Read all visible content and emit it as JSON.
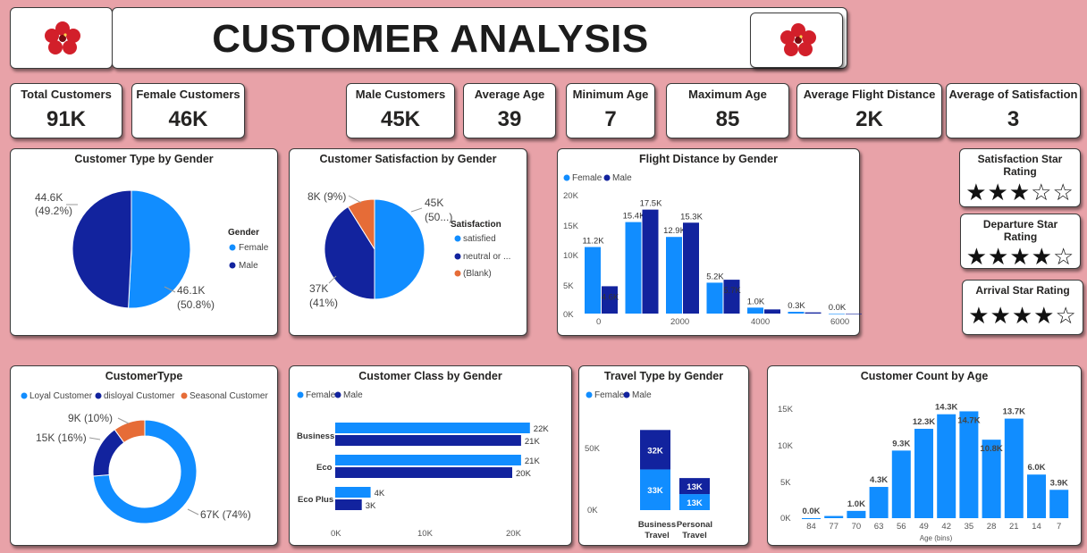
{
  "header": {
    "title": "CUSTOMER ANALYSIS"
  },
  "kpis": [
    {
      "label": "Total Customers",
      "value": "91K"
    },
    {
      "label": "Female Customers",
      "value": "46K"
    },
    {
      "label": "Male Customers",
      "value": "45K"
    },
    {
      "label": "Average Age",
      "value": "39"
    },
    {
      "label": "Minimum Age",
      "value": "7"
    },
    {
      "label": "Maximum Age",
      "value": "85"
    },
    {
      "label": "Average Flight Distance",
      "value": "2K"
    },
    {
      "label": "Average of Satisfaction",
      "value": "3"
    }
  ],
  "colors": {
    "female": "#118dff",
    "male": "#12239e",
    "blank": "#e66c37",
    "background": "#e8a2a8"
  },
  "ratings": [
    {
      "title": "Satisfaction Star Rating",
      "stars": "★★★☆☆",
      "value": 3
    },
    {
      "title": "Departure Star Rating",
      "stars": "★★★★☆",
      "value": 4
    },
    {
      "title": "Arrival Star Rating",
      "stars": "★★★★☆",
      "value": 4
    }
  ],
  "chart_data": [
    {
      "type": "pie",
      "title": "Customer Type by Gender",
      "legend_title": "Gender",
      "categories": [
        "Female",
        "Male"
      ],
      "values": [
        46.1,
        44.6
      ],
      "labels": [
        "46.1K",
        "44.6K"
      ],
      "pct_labels": [
        "(50.8%)",
        "(49.2%)"
      ]
    },
    {
      "type": "pie",
      "title": "Customer Satisfaction by Gender",
      "legend_title": "Satisfaction",
      "categories": [
        "satisfied",
        "neutral or ...",
        "(Blank)"
      ],
      "values": [
        45,
        37,
        8
      ],
      "labels": [
        "45K",
        "37K",
        "8K"
      ],
      "pct_labels": [
        "(50...)",
        "(41%)",
        "(9%)"
      ]
    },
    {
      "type": "bar",
      "title": "Flight Distance by Gender",
      "legend": [
        "Female",
        "Male"
      ],
      "x_ticks": [
        "0",
        "2000",
        "4000",
        "6000"
      ],
      "y_ticks": [
        "0K",
        "5K",
        "10K",
        "15K",
        "20K"
      ],
      "ylim": [
        0,
        20
      ],
      "series": [
        {
          "name": "Female",
          "values": [
            11.2,
            15.4,
            12.9,
            5.2,
            1.0,
            0.3,
            0.0
          ],
          "labels": [
            "11.2K",
            "15.4K",
            "12.9K",
            "5.2K",
            "1.0K",
            "0.3K",
            "0.0K"
          ]
        },
        {
          "name": "Male",
          "values": [
            4.6,
            17.5,
            15.3,
            5.7,
            0.7,
            0.2,
            0.0
          ],
          "labels": [
            "4.6K",
            "17.5K",
            "15.3K",
            "5.7K",
            "",
            "",
            ""
          ]
        }
      ]
    },
    {
      "type": "pie",
      "title": "CustomerType",
      "categories": [
        "Loyal Customer",
        "disloyal Customer",
        "Seasonal Customer"
      ],
      "values": [
        67,
        15,
        9
      ],
      "labels": [
        "67K (74%)",
        "15K (16%)",
        "9K (10%)"
      ]
    },
    {
      "type": "bar",
      "title": "Customer Class by Gender",
      "legend": [
        "Female",
        "Male"
      ],
      "categories": [
        "Business",
        "Eco",
        "Eco Plus"
      ],
      "x_ticks": [
        "0K",
        "10K",
        "20K"
      ],
      "xlim": [
        0,
        25
      ],
      "series": [
        {
          "name": "Female",
          "values": [
            22,
            21,
            4
          ],
          "labels": [
            "22K",
            "21K",
            "4K"
          ]
        },
        {
          "name": "Male",
          "values": [
            21,
            20,
            3
          ],
          "labels": [
            "21K",
            "20K",
            "3K"
          ]
        }
      ]
    },
    {
      "type": "bar",
      "title": "Travel Type by Gender",
      "legend": [
        "Female",
        "Male"
      ],
      "categories": [
        "Business Travel",
        "Personal Travel"
      ],
      "y_ticks": [
        "0K",
        "50K"
      ],
      "series": [
        {
          "name": "Female",
          "values": [
            33,
            13
          ],
          "labels": [
            "33K",
            "13K"
          ]
        },
        {
          "name": "Male",
          "values": [
            32,
            13
          ],
          "labels": [
            "32K",
            "13K"
          ]
        }
      ]
    },
    {
      "type": "bar",
      "title": "Customer Count by Age",
      "xlabel": "Age (bins)",
      "categories": [
        "84",
        "77",
        "70",
        "63",
        "56",
        "49",
        "42",
        "35",
        "28",
        "21",
        "14",
        "7"
      ],
      "values": [
        0.0,
        0.3,
        1.0,
        4.3,
        9.3,
        12.3,
        14.3,
        14.7,
        10.8,
        13.7,
        6.0,
        3.9
      ],
      "labels": [
        "0.0K",
        "",
        "1.0K",
        "4.3K",
        "9.3K",
        "12.3K",
        "14.3K",
        "14.7K",
        "10.8K",
        "13.7K",
        "6.0K",
        "3.9K"
      ],
      "y_ticks": [
        "0K",
        "5K",
        "10K",
        "15K"
      ],
      "ylim": [
        0,
        16
      ]
    }
  ]
}
